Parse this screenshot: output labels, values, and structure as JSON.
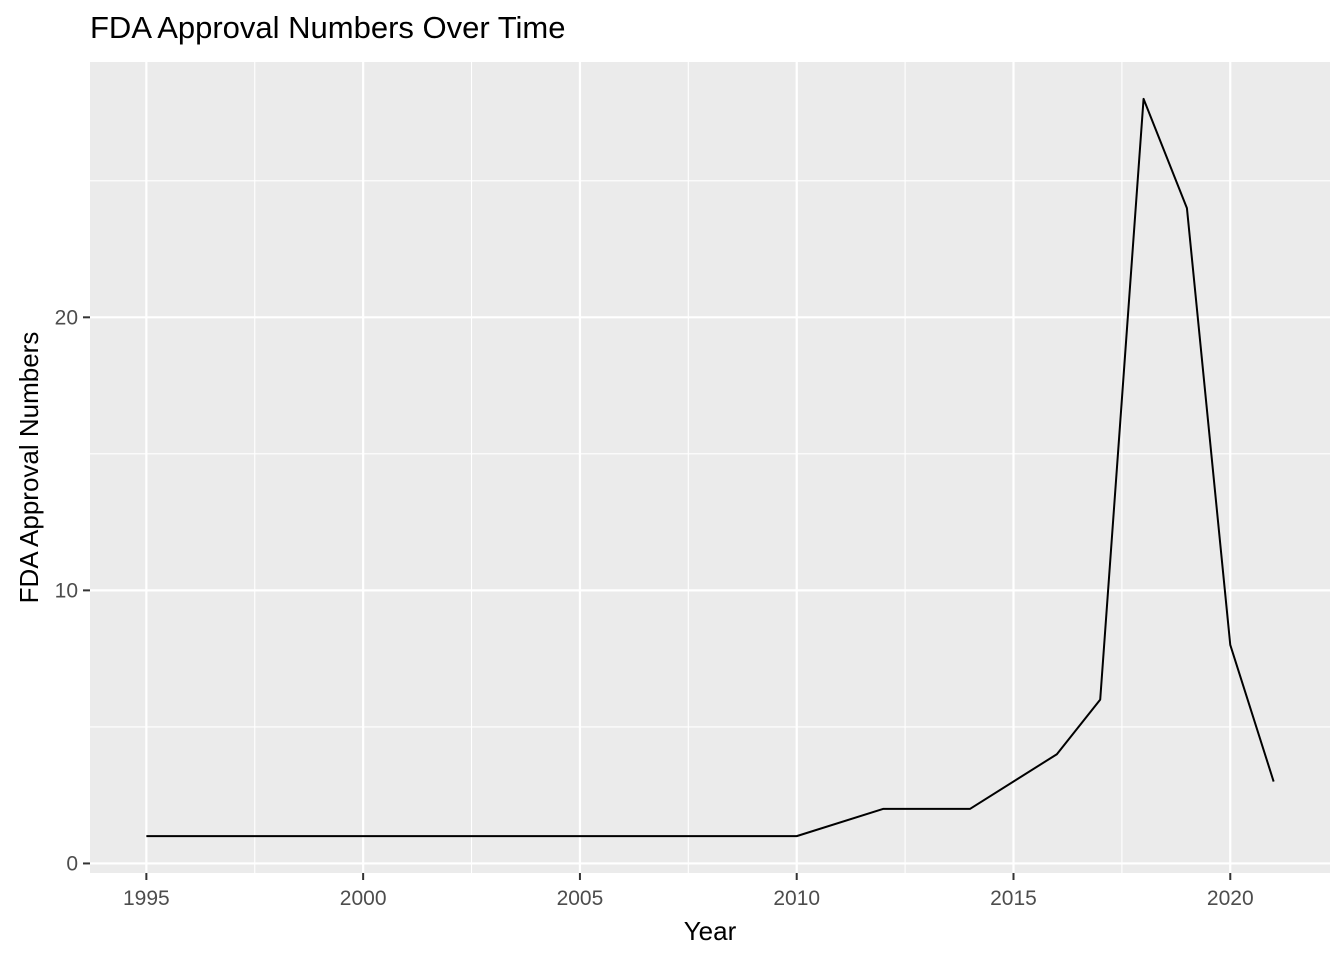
{
  "chart_data": {
    "type": "line",
    "title": "FDA Approval Numbers Over Time",
    "xlabel": "Year",
    "ylabel": "FDA Approval Numbers",
    "x": [
      1995,
      2010,
      2012,
      2014,
      2016,
      2017,
      2018,
      2019,
      2020,
      2021
    ],
    "y": [
      1,
      1,
      2,
      2,
      4,
      6,
      28,
      24,
      8,
      3
    ],
    "x_ticks": [
      1995,
      2000,
      2005,
      2010,
      2015,
      2020
    ],
    "y_ticks": [
      0,
      10,
      20
    ],
    "xlim": [
      1993.7,
      2022.3
    ],
    "ylim": [
      -0.35,
      29.35
    ],
    "grid": true,
    "legend": "none",
    "colors": {
      "panel_background": "#ebebeb",
      "grid_line": "#ffffff",
      "series_line": "#000000",
      "tick_text": "#4d4d4d"
    }
  }
}
